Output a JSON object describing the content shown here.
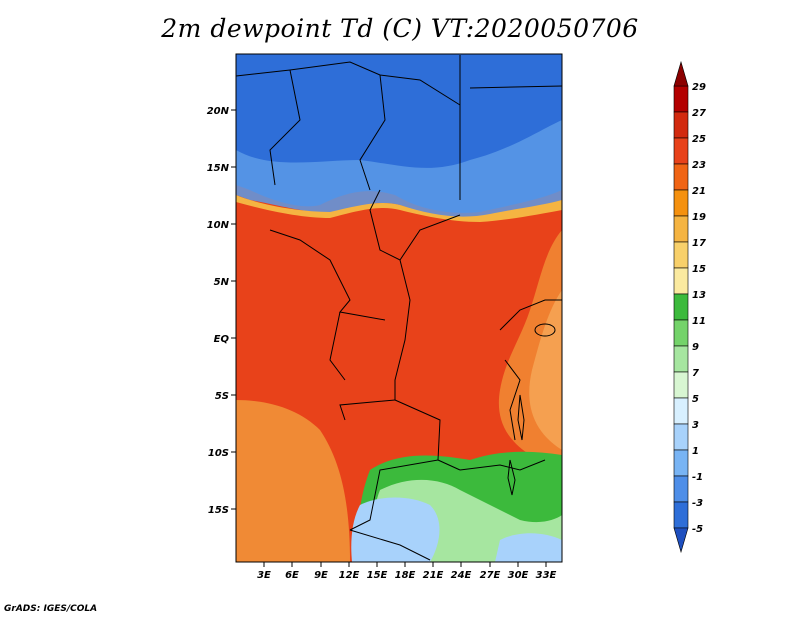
{
  "title": "2m dewpoint Td (C) VT:2020050706",
  "footer": "GrADS: IGES/COLA",
  "lat_labels": [
    "20N",
    "15N",
    "10N",
    "5N",
    "EQ",
    "5S",
    "10S",
    "15S"
  ],
  "lon_labels": [
    "3E",
    "6E",
    "9E",
    "12E",
    "15E",
    "18E",
    "21E",
    "24E",
    "27E",
    "30E",
    "33E"
  ],
  "colorbar": {
    "labels": [
      "29",
      "27",
      "25",
      "23",
      "21",
      "19",
      "17",
      "15",
      "13",
      "11",
      "9",
      "7",
      "5",
      "3",
      "1",
      "-1",
      "-3",
      "-5"
    ],
    "colors": [
      "#8b0000",
      "#b30000",
      "#d22a0f",
      "#e8421a",
      "#f06414",
      "#f5910f",
      "#f5b442",
      "#f8d06a",
      "#fbeaa0",
      "#3cba3c",
      "#74d36a",
      "#a6e6a0",
      "#d8f6d2",
      "#d8f0ff",
      "#a8d2fb",
      "#78b4f4",
      "#4e8ee8",
      "#2e6ed8",
      "#1e4fbf"
    ]
  },
  "regions": {
    "sahara": "#2e6ed8",
    "sahel": "#5a9ae8",
    "tropics": "#e8421a",
    "west_sea": "#e8501e",
    "east": "#f08030",
    "east_light": "#f5a050",
    "south_ocean": "#f08a35",
    "south_green": "#3cba3c",
    "south_light_green": "#a6e6a0",
    "south_blue": "#a8d2fb"
  }
}
